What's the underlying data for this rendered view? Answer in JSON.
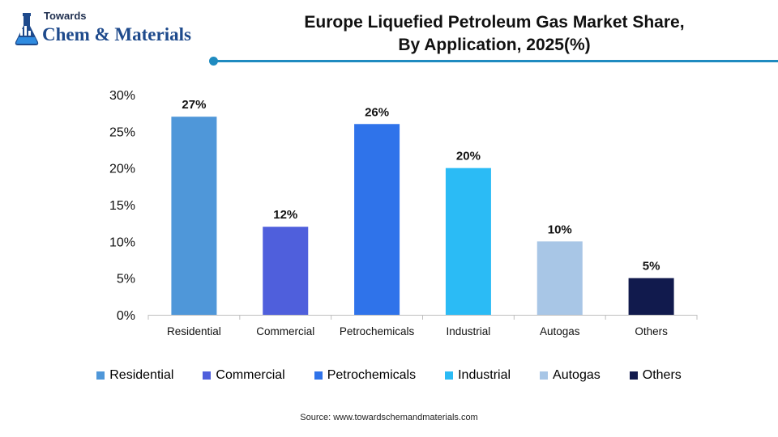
{
  "header": {
    "logo_top": "Towards",
    "logo_brand": "Chem & Materials",
    "title_line1": "Europe Liquefied Petroleum Gas Market Share,",
    "title_line2": "By Application, 2025(%)"
  },
  "chart_data": {
    "type": "bar",
    "title": "Europe Liquefied Petroleum Gas Market Share, By Application, 2025(%)",
    "xlabel": "",
    "ylabel": "",
    "ylim": [
      0,
      30
    ],
    "yticks": [
      0,
      5,
      10,
      15,
      20,
      25,
      30
    ],
    "ytick_labels": [
      "0%",
      "5%",
      "10%",
      "15%",
      "20%",
      "25%",
      "30%"
    ],
    "categories": [
      "Residential",
      "Commercial",
      "Petrochemicals",
      "Industrial",
      "Autogas",
      "Others"
    ],
    "values": [
      27,
      12,
      26,
      20,
      10,
      5
    ],
    "data_labels": [
      "27%",
      "12%",
      "26%",
      "20%",
      "10%",
      "5%"
    ],
    "colors": [
      "#4f97d9",
      "#4f5fdc",
      "#2f73ea",
      "#2bbbf5",
      "#a8c6e6",
      "#111a4d"
    ],
    "grid": false,
    "legend_position": "bottom"
  },
  "legend": {
    "items": [
      {
        "label": "Residential",
        "color": "#4f97d9"
      },
      {
        "label": "Commercial",
        "color": "#4f5fdc"
      },
      {
        "label": "Petrochemicals",
        "color": "#2f73ea"
      },
      {
        "label": "Industrial",
        "color": "#2bbbf5"
      },
      {
        "label": "Autogas",
        "color": "#a8c6e6"
      },
      {
        "label": "Others",
        "color": "#111a4d"
      }
    ]
  },
  "footer": {
    "source": "Source: www.towardschemandmaterials.com"
  }
}
